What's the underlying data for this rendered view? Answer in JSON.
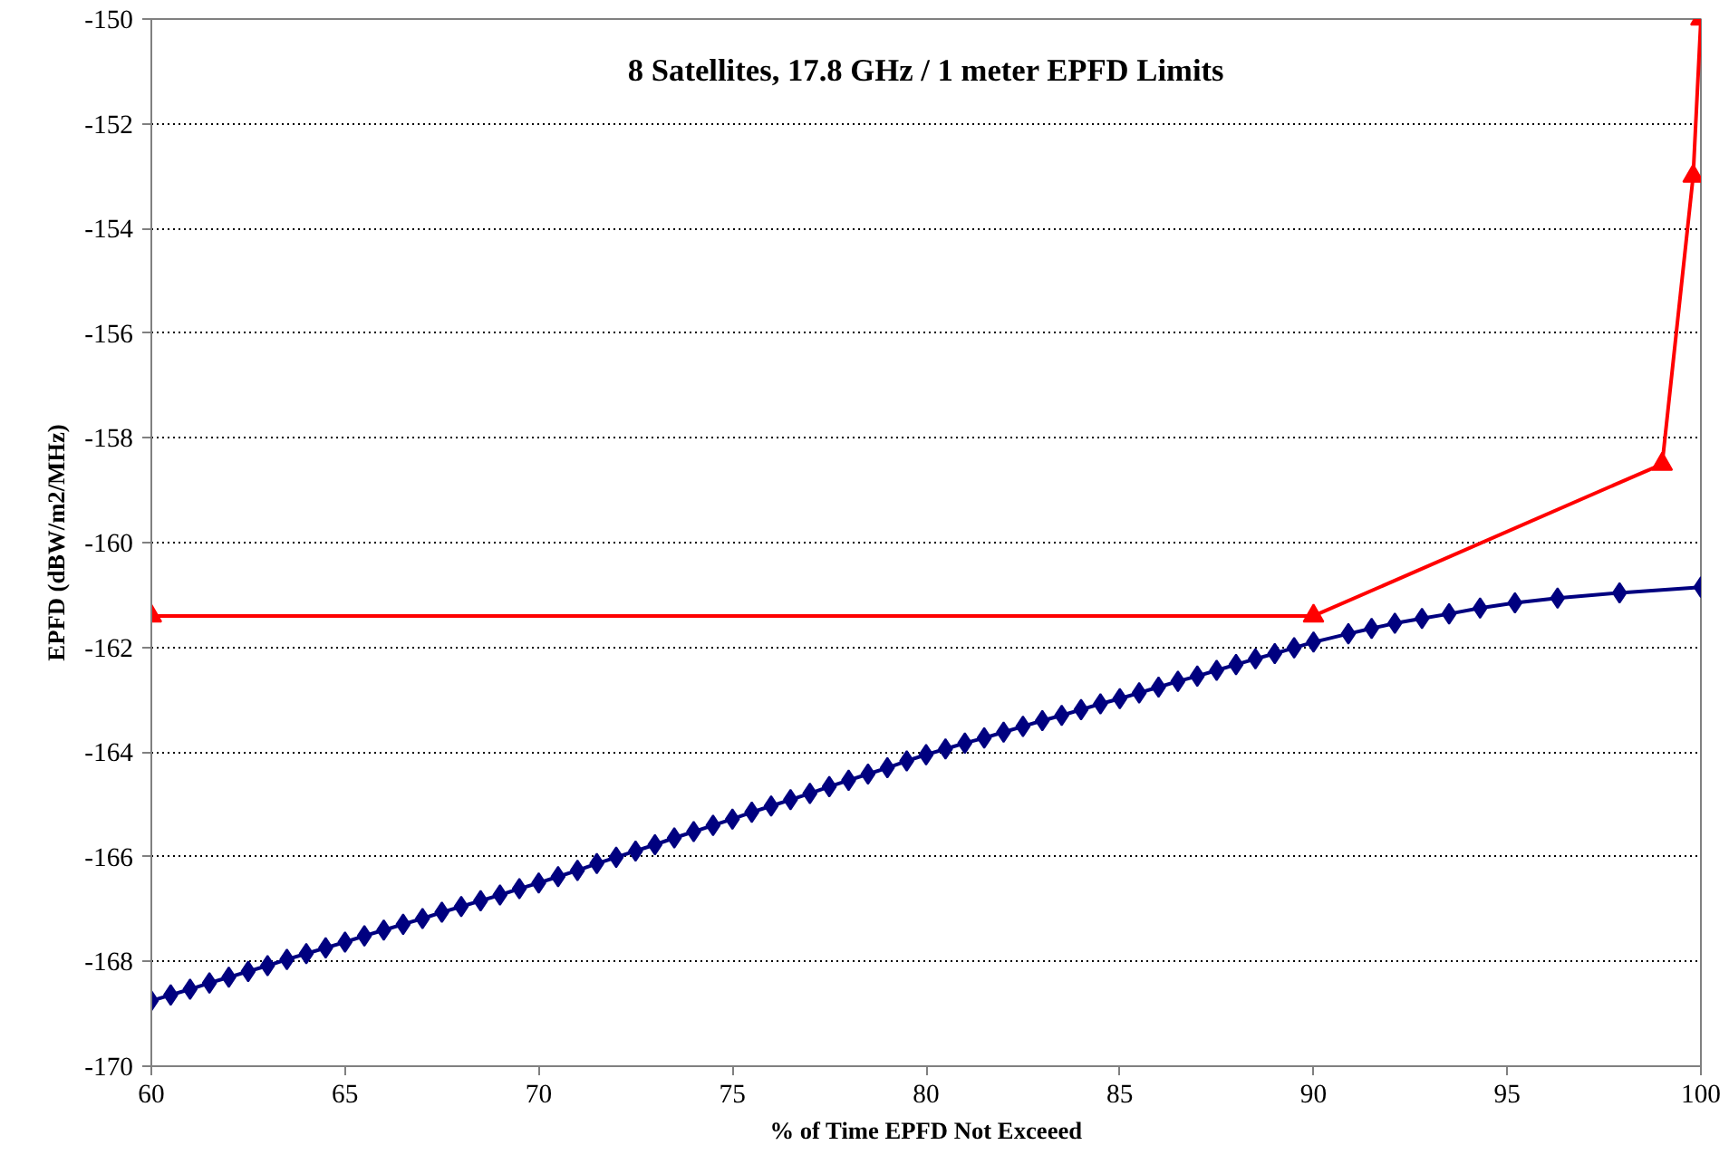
{
  "chart_data": {
    "type": "line",
    "title": "8 Satellites, 17.8 GHz / 1 meter EPFD Limits",
    "xlabel": "% of Time EPFD Not Exceeed",
    "ylabel": "EPFD (dBW/m2/MHz)",
    "xlim": [
      60,
      100
    ],
    "xticks": [
      60,
      65,
      70,
      75,
      80,
      85,
      90,
      95,
      100
    ],
    "ylim": [
      -170,
      -150
    ],
    "yticks": [
      -170,
      -168,
      -166,
      -164,
      -162,
      -160,
      -158,
      -156,
      -154,
      -152,
      -150
    ],
    "grid": "y",
    "series": [
      {
        "color": "#000080",
        "marker": "diamond",
        "x": [
          60,
          60.5,
          61,
          61.5,
          62,
          62.5,
          63,
          63.5,
          64,
          64.5,
          65,
          65.5,
          66,
          66.5,
          67,
          67.5,
          68,
          68.5,
          69,
          69.5,
          70,
          70.5,
          71,
          71.5,
          72,
          72.5,
          73,
          73.5,
          74,
          74.5,
          75,
          75.5,
          76,
          76.5,
          77,
          77.5,
          78,
          78.5,
          79,
          79.5,
          80,
          80.5,
          81,
          81.5,
          82,
          82.5,
          83,
          83.5,
          84,
          84.5,
          85,
          85.5,
          86,
          86.5,
          87,
          87.5,
          88,
          88.5,
          89,
          89.5,
          90,
          90.9,
          91.5,
          92.1,
          92.8,
          93.5,
          94.3,
          95.2,
          96.3,
          97.9,
          100
        ],
        "values": [
          -168.75,
          -168.64,
          -168.53,
          -168.41,
          -168.3,
          -168.19,
          -168.08,
          -167.96,
          -167.85,
          -167.74,
          -167.63,
          -167.51,
          -167.4,
          -167.29,
          -167.18,
          -167.06,
          -166.95,
          -166.84,
          -166.73,
          -166.61,
          -166.5,
          -166.38,
          -166.26,
          -166.13,
          -166.01,
          -165.89,
          -165.77,
          -165.64,
          -165.52,
          -165.4,
          -165.28,
          -165.15,
          -165.03,
          -164.91,
          -164.79,
          -164.66,
          -164.54,
          -164.42,
          -164.3,
          -164.17,
          -164.05,
          -163.94,
          -163.83,
          -163.73,
          -163.62,
          -163.51,
          -163.4,
          -163.3,
          -163.19,
          -163.08,
          -162.98,
          -162.87,
          -162.76,
          -162.65,
          -162.55,
          -162.44,
          -162.33,
          -162.22,
          -162.12,
          -162.01,
          -161.9,
          -161.74,
          -161.64,
          -161.54,
          -161.45,
          -161.36,
          -161.25,
          -161.15,
          -161.06,
          -160.96,
          -160.85
        ]
      },
      {
        "color": "#ff0000",
        "marker": "triangle",
        "x": [
          60,
          90,
          99,
          99.8,
          100
        ],
        "values": [
          -161.4,
          -161.4,
          -158.5,
          -153,
          -150
        ]
      }
    ]
  }
}
